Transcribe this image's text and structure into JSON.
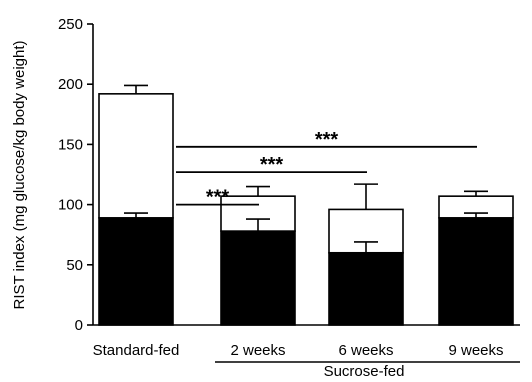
{
  "chart_data": {
    "type": "bar",
    "categories": [
      "Standard-fed",
      "2 weeks",
      "6 weeks",
      "9 weeks"
    ],
    "group_label": "Sucrose-fed",
    "group_members": [
      "2 weeks",
      "6 weeks",
      "9 weeks"
    ],
    "ylabel": "RIST index (mg glucose/kg body weight)",
    "ylim": [
      0,
      250
    ],
    "yticks": [
      0,
      50,
      100,
      150,
      200,
      250
    ],
    "stacked": true,
    "series": [
      {
        "values": [
          89,
          78,
          60,
          89
        ],
        "errors": [
          4,
          10,
          9,
          4
        ],
        "fill": "#000000"
      },
      {
        "values": [
          103,
          29,
          36,
          18
        ],
        "errors": [
          7,
          8,
          21,
          4
        ],
        "fill": "#ffffff"
      }
    ],
    "significance": [
      {
        "label": "***",
        "from": "Standard-fed",
        "to": "2 weeks",
        "y": 100
      },
      {
        "label": "***",
        "from": "Standard-fed",
        "to": "6 weeks",
        "y": 127
      },
      {
        "label": "***",
        "from": "Standard-fed",
        "to": "9 weeks",
        "y": 148
      }
    ],
    "grid": false,
    "colors": {
      "axis": "#000000",
      "bar_outline": "#000000"
    }
  }
}
